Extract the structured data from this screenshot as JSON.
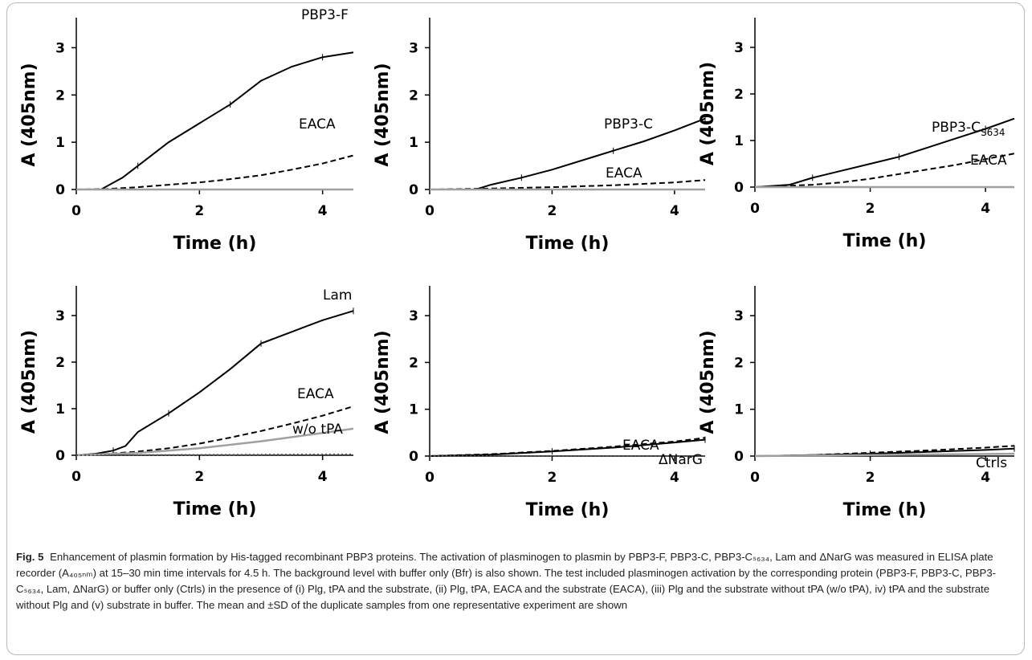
{
  "figure": {
    "caption_label": "Fig. 5",
    "caption_text": "Enhancement of plasmin formation by His-tagged recombinant PBP3 proteins. The activation of plasminogen to plasmin by PBP3-F, PBP3-C, PBP3-Cₛ₆₃₄, Lam and ΔNarG was measured in ELISA plate recorder (A₄₀₅ₙₘ) at 15–30 min time intervals for 4.5 h. The background level with buffer only (Bfr) is also shown. The test included plasminogen activation by the corresponding protein (PBP3-F, PBP3-C, PBP3-Cₛ₆₃₄, Lam, ΔNarG) or buffer only (Ctrls) in the presence of (i) Plg, tPA and the substrate, (ii) Plg, tPA, EACA and the substrate (EACA), (iii) Plg and the substrate without tPA (w/o tPA), iv) tPA and the substrate without Plg and (v) substrate in buffer. The mean and ±SD of the duplicate samples from one representative experiment are shown"
  },
  "chart_data": [
    {
      "type": "line",
      "xlabel": "Time (h)",
      "ylabel": "A (405nm)",
      "xlim": [
        0,
        4.5
      ],
      "ylim": [
        0,
        3.5
      ],
      "xticks": [
        0,
        2,
        4
      ],
      "yticks": [
        0,
        1,
        2,
        3
      ],
      "series": [
        {
          "name": "PBP3-F",
          "style": "solid",
          "color": "#000000",
          "x": [
            0.4,
            0.75,
            1.0,
            1.5,
            2.0,
            2.5,
            3.0,
            3.5,
            4.0,
            4.5
          ],
          "y": [
            0,
            0.25,
            0.5,
            1.0,
            1.4,
            1.8,
            2.3,
            2.6,
            2.8,
            2.9
          ]
        },
        {
          "name": "EACA",
          "style": "dashed",
          "color": "#000000",
          "x": [
            0,
            0.5,
            1.0,
            1.5,
            2.0,
            2.5,
            3.0,
            3.5,
            4.0,
            4.5
          ],
          "y": [
            0,
            0.01,
            0.05,
            0.1,
            0.15,
            0.22,
            0.3,
            0.42,
            0.55,
            0.72
          ]
        },
        {
          "name": "",
          "style": "solid",
          "color": "#a0a0a0",
          "x": [
            0,
            4.5
          ],
          "y": [
            0,
            0
          ]
        }
      ]
    },
    {
      "type": "line",
      "xlabel": "Time (h)",
      "ylabel": "A (405nm)",
      "xlim": [
        0,
        4.5
      ],
      "ylim": [
        0,
        3.5
      ],
      "xticks": [
        0,
        2,
        4
      ],
      "yticks": [
        0,
        1,
        2,
        3
      ],
      "series": [
        {
          "name": "PBP3-C",
          "style": "solid",
          "color": "#000000",
          "x": [
            0.75,
            1.0,
            1.5,
            2.0,
            2.5,
            3.0,
            3.5,
            4.0,
            4.5
          ],
          "y": [
            0,
            0.1,
            0.25,
            0.42,
            0.62,
            0.82,
            1.02,
            1.25,
            1.5
          ]
        },
        {
          "name": "EACA",
          "style": "dashed",
          "color": "#000000",
          "x": [
            0,
            1.0,
            2.0,
            3.0,
            4.0,
            4.5
          ],
          "y": [
            0,
            0.02,
            0.05,
            0.09,
            0.15,
            0.2
          ]
        },
        {
          "name": "",
          "style": "solid",
          "color": "#a0a0a0",
          "x": [
            0,
            4.5
          ],
          "y": [
            0,
            0
          ]
        }
      ]
    },
    {
      "type": "line",
      "xlabel": "Time (h)",
      "ylabel": "A (405nm)",
      "xlim": [
        0,
        4.5
      ],
      "ylim": [
        0,
        3.5
      ],
      "xticks": [
        0,
        2,
        4
      ],
      "yticks": [
        0,
        1,
        2,
        3
      ],
      "series": [
        {
          "name": "PBP3-C",
          "name_sub": "S634",
          "style": "solid",
          "color": "#000000",
          "x": [
            0,
            0.6,
            1.0,
            1.5,
            2.0,
            2.5,
            3.0,
            3.5,
            4.0,
            4.5
          ],
          "y": [
            0,
            0.05,
            0.2,
            0.35,
            0.5,
            0.65,
            0.85,
            1.05,
            1.25,
            1.47
          ]
        },
        {
          "name": "EACA",
          "style": "dashed",
          "color": "#000000",
          "x": [
            0,
            1.0,
            1.5,
            2.0,
            2.5,
            3.0,
            3.5,
            4.0,
            4.5
          ],
          "y": [
            0,
            0.05,
            0.1,
            0.18,
            0.28,
            0.38,
            0.48,
            0.6,
            0.72
          ]
        },
        {
          "name": "",
          "style": "solid",
          "color": "#a0a0a0",
          "x": [
            0,
            4.5
          ],
          "y": [
            0,
            0
          ]
        }
      ]
    },
    {
      "type": "line",
      "xlabel": "Time (h)",
      "ylabel": "A (405nm)",
      "xlim": [
        0,
        4.5
      ],
      "ylim": [
        0,
        3.5
      ],
      "xticks": [
        0,
        2,
        4
      ],
      "yticks": [
        0,
        1,
        2,
        3
      ],
      "series": [
        {
          "name": "Lam",
          "style": "solid",
          "color": "#000000",
          "x": [
            0,
            0.3,
            0.6,
            0.8,
            1.0,
            1.5,
            2.0,
            2.5,
            3.0,
            3.5,
            4.0,
            4.5
          ],
          "y": [
            0,
            0.03,
            0.1,
            0.2,
            0.5,
            0.9,
            1.35,
            1.85,
            2.4,
            2.65,
            2.9,
            3.1
          ]
        },
        {
          "name": "EACA",
          "style": "dashed",
          "color": "#000000",
          "x": [
            0,
            0.5,
            1.0,
            1.5,
            2.0,
            2.5,
            3.0,
            3.5,
            4.0,
            4.5
          ],
          "y": [
            0,
            0.03,
            0.08,
            0.15,
            0.25,
            0.38,
            0.52,
            0.68,
            0.85,
            1.05
          ]
        },
        {
          "name": "w/o tPA",
          "style": "solid",
          "color": "#a0a0a0",
          "x": [
            0,
            1.0,
            2.0,
            3.0,
            4.0,
            4.5
          ],
          "y": [
            0,
            0.05,
            0.15,
            0.3,
            0.48,
            0.57
          ]
        },
        {
          "name": "",
          "style": "dotted",
          "color": "#555555",
          "x": [
            0,
            4.5
          ],
          "y": [
            0,
            0.02
          ]
        }
      ]
    },
    {
      "type": "line",
      "xlabel": "Time (h)",
      "ylabel": "A (405nm)",
      "xlim": [
        0,
        4.5
      ],
      "ylim": [
        0,
        3.5
      ],
      "xticks": [
        0,
        2,
        4
      ],
      "yticks": [
        0,
        1,
        2,
        3
      ],
      "series": [
        {
          "name": "ΔNarG",
          "style": "solid",
          "color": "#000000",
          "x": [
            0,
            1.0,
            2.0,
            3.0,
            4.0,
            4.5
          ],
          "y": [
            0,
            0.03,
            0.1,
            0.18,
            0.29,
            0.35
          ]
        },
        {
          "name": "EACA",
          "style": "dashed",
          "color": "#000000",
          "x": [
            0,
            1.0,
            2.0,
            3.0,
            4.0,
            4.5
          ],
          "y": [
            0,
            0.04,
            0.11,
            0.2,
            0.31,
            0.39
          ]
        },
        {
          "name": "",
          "style": "dotted",
          "color": "#555555",
          "x": [
            0,
            4.5
          ],
          "y": [
            0,
            0
          ]
        }
      ]
    },
    {
      "type": "line",
      "xlabel": "Time (h)",
      "ylabel": "A (405nm)",
      "xlim": [
        0,
        4.5
      ],
      "ylim": [
        0,
        3.5
      ],
      "xticks": [
        0,
        2,
        4
      ],
      "yticks": [
        0,
        1,
        2,
        3
      ],
      "series": [
        {
          "name": "Ctrls",
          "style": "dashed",
          "color": "#000000",
          "x": [
            0,
            1.0,
            2.0,
            3.0,
            4.0,
            4.5
          ],
          "y": [
            0,
            0.02,
            0.07,
            0.12,
            0.18,
            0.22
          ]
        },
        {
          "name": "",
          "style": "solid",
          "color": "#000000",
          "x": [
            0,
            1.0,
            2.0,
            3.0,
            4.0,
            4.5
          ],
          "y": [
            0,
            0.02,
            0.05,
            0.09,
            0.13,
            0.16
          ]
        },
        {
          "name": "",
          "style": "solid",
          "color": "#a0a0a0",
          "x": [
            0,
            4.5
          ],
          "y": [
            0,
            0.05
          ]
        }
      ]
    }
  ]
}
